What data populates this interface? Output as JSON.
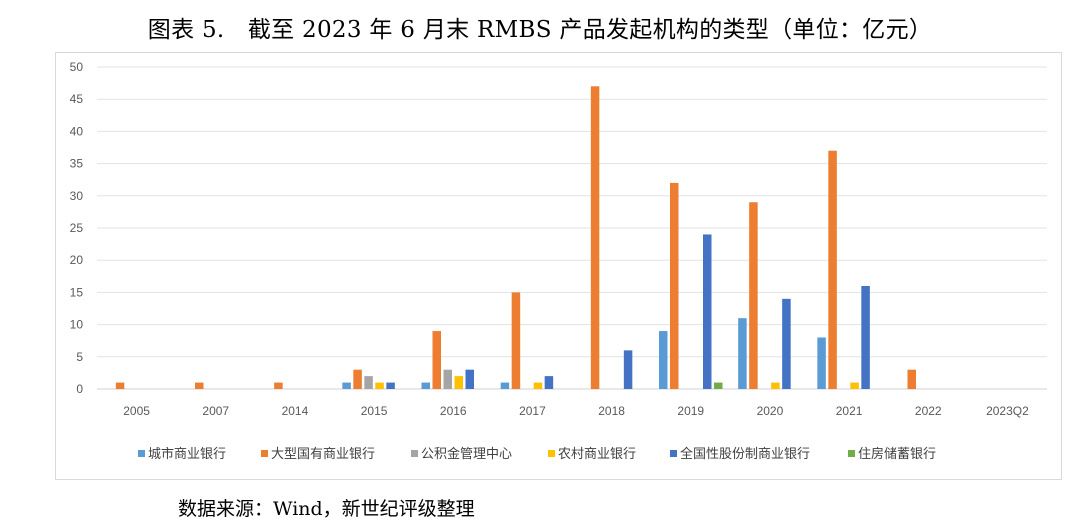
{
  "title": "图表 5.　截至 2023 年 6 月末 RMBS 产品发起机构的类型（单位：亿元）",
  "source": "数据来源：Wind，新世纪评级整理",
  "chart_data": {
    "type": "bar",
    "categories": [
      "2005",
      "2007",
      "2014",
      "2015",
      "2016",
      "2017",
      "2018",
      "2019",
      "2020",
      "2021",
      "2022",
      "2023Q2"
    ],
    "ylim": [
      0,
      50
    ],
    "yticks": [
      0,
      5,
      10,
      15,
      20,
      25,
      30,
      35,
      40,
      45,
      50
    ],
    "grid": true,
    "legend_position": "bottom",
    "series": [
      {
        "name": "城市商业银行",
        "color": "#5b9bd5",
        "values": [
          0,
          0,
          0,
          1,
          1,
          1,
          0,
          9,
          11,
          8,
          0,
          0
        ]
      },
      {
        "name": "大型国有商业银行",
        "color": "#ed7d31",
        "values": [
          1,
          1,
          1,
          3,
          9,
          15,
          47,
          32,
          29,
          37,
          3,
          0
        ]
      },
      {
        "name": "公积金管理中心",
        "color": "#a5a5a5",
        "values": [
          0,
          0,
          0,
          2,
          3,
          0,
          0,
          0,
          0,
          0,
          0,
          0
        ]
      },
      {
        "name": "农村商业银行",
        "color": "#ffc000",
        "values": [
          0,
          0,
          0,
          1,
          2,
          1,
          0,
          0,
          1,
          1,
          0,
          0
        ]
      },
      {
        "name": "全国性股份制商业银行",
        "color": "#4472c4",
        "values": [
          0,
          0,
          0,
          1,
          3,
          2,
          6,
          24,
          14,
          16,
          0,
          0
        ]
      },
      {
        "name": "住房储蓄银行",
        "color": "#70ad47",
        "values": [
          0,
          0,
          0,
          0,
          0,
          0,
          0,
          1,
          0,
          0,
          0,
          0
        ]
      }
    ]
  }
}
